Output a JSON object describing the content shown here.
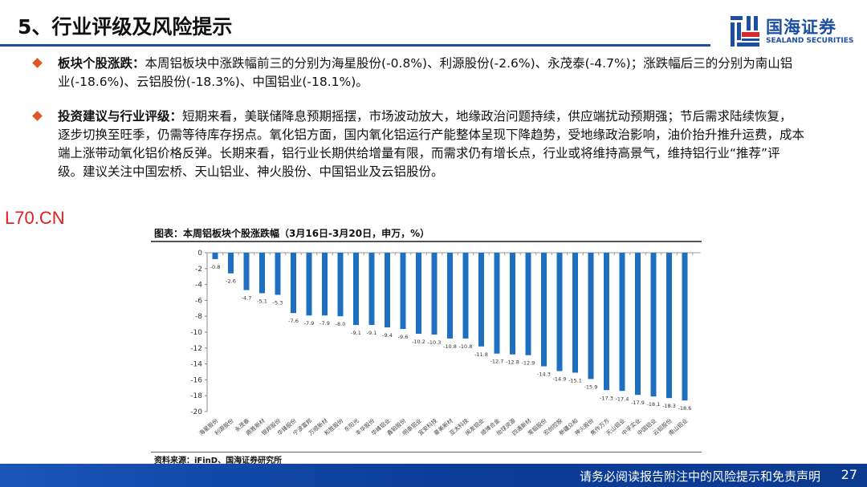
{
  "header": {
    "title": "5、行业评级及风险提示",
    "logo_cn": "国海证券",
    "logo_en": "SEALAND SECURITIES"
  },
  "bullets": [
    {
      "label": "板块个股涨跌：",
      "text": "本周铝板块中涨跌幅前三的分别为海星股份(-0.8%)、利源股份(-2.6%)、永茂泰(-4.7%)；涨跌幅后三的分别为南山铝业(-18.6%)、云铝股份(-18.3%)、中国铝业(-18.1%)。"
    },
    {
      "label": "投资建议与行业评级：",
      "text": "短期来看，美联储降息预期摇摆，市场波动放大，地缘政治问题持续，供应端扰动预期强；节后需求陆续恢复，逐步切换至旺季，仍需等待库存拐点。氧化铝方面，国内氧化铝运行产能整体呈现下降趋势，受地缘政治影响，油价抬升推升运费，成本端上涨带动氧化铝价格反弹。长期来看，铝行业长期供给增量有限，而需求仍有增长点，行业或将维持高景气，维持铝行业“推荐”评级。建议关注中国宏桥、天山铝业、神火股份、中国铝业及云铝股份。"
    }
  ],
  "watermark": "L70.CN",
  "chart_data": {
    "type": "bar",
    "title": "图表：本周铝板块个股涨跌幅（3月16日-3月20日，申万，%）",
    "categories": [
      "海星股份",
      "利源股份",
      "永茂泰",
      "鼎胜新材",
      "银邦股份",
      "华锋股份",
      "宁波富邦",
      "万顺新材",
      "和胜股份",
      "东阳光",
      "丰华股份",
      "华峰铝业",
      "鑫铂股份",
      "明泰铝业",
      "宜安科技",
      "豪美新材",
      "亚太科技",
      "闽发铝业",
      "顺博合金",
      "怡球资源",
      "四通新材",
      "常铝股份",
      "宏创控股",
      "新疆众和",
      "神火股份",
      "焦作万方",
      "天山铝业",
      "中孚实业",
      "中国铝业",
      "云铝股份",
      "南山铝业"
    ],
    "values": [
      -0.8,
      -2.6,
      -4.7,
      -5.1,
      -5.3,
      -7.6,
      -7.9,
      -7.9,
      -8.0,
      -9.1,
      -9.1,
      -9.4,
      -9.6,
      -10.2,
      -10.3,
      -10.8,
      -10.8,
      -11.8,
      -12.7,
      -12.8,
      -12.9,
      -14.3,
      -14.9,
      -15.1,
      -15.9,
      -17.3,
      -17.4,
      -17.9,
      -18.1,
      -18.3,
      -18.6
    ],
    "yticks": [
      0,
      -2,
      -4,
      -6,
      -8,
      -10,
      -12,
      -14,
      -16,
      -18,
      -20
    ],
    "ylim": [
      -20,
      0
    ],
    "bar_color": "#1f6fc0",
    "source": "资料来源：iFinD、国海证券研究所"
  },
  "footer": {
    "disclaimer": "请务必阅读报告附注中的风险提示和免责声明",
    "page": "27"
  }
}
